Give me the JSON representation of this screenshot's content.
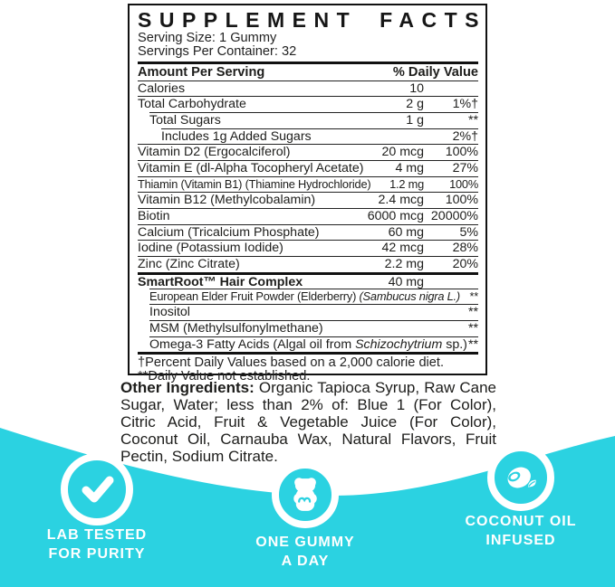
{
  "colors": {
    "teal": "#2BD2E1",
    "text": "#1D1D1B",
    "border": "#111111",
    "white": "#FFFFFF"
  },
  "label": {
    "title": "SUPPLEMENT FACTS",
    "serving_size": "Serving Size: 1 Gummy",
    "servings_per_container": "Servings Per Container: 32",
    "header": {
      "left": "Amount Per Serving",
      "right": "% Daily Value"
    },
    "rows": [
      {
        "name": "Calories",
        "amount": "10",
        "dv": "",
        "indent": 0,
        "sep": "thin"
      },
      {
        "name": "Total Carbohydrate",
        "amount": "2 g",
        "dv": "1%†",
        "indent": 0,
        "sep": "thin"
      },
      {
        "name": "Total Sugars",
        "amount": "1 g",
        "dv": "**",
        "indent": 1,
        "sep": "thin"
      },
      {
        "name": "Includes 1g Added Sugars",
        "amount": "",
        "dv": "2%†",
        "indent": 2,
        "sep": "thin"
      },
      {
        "name": "Vitamin D2 (Ergocalciferol)",
        "amount": "20 mcg",
        "dv": "100%",
        "indent": 0,
        "sep": "thin"
      },
      {
        "name": "Vitamin E (dl-Alpha Tocopheryl Acetate)",
        "amount": "4 mg",
        "dv": "27%",
        "indent": 0,
        "sep": "thin"
      },
      {
        "name": "Thiamin (Vitamin B1) (Thiamine Hydrochloride)",
        "amount": "1.2 mg",
        "dv": "100%",
        "indent": 0,
        "sep": "thin",
        "small": true
      },
      {
        "name": "Vitamin B12 (Methylcobalamin)",
        "amount": "2.4 mcg",
        "dv": "100%",
        "indent": 0,
        "sep": "thin"
      },
      {
        "name": "Biotin",
        "amount": "6000 mcg",
        "dv": "20000%",
        "indent": 0,
        "sep": "thin"
      },
      {
        "name": "Calcium (Tricalcium Phosphate)",
        "amount": "60 mg",
        "dv": "5%",
        "indent": 0,
        "sep": "thin"
      },
      {
        "name": "Iodine (Potassium Iodide)",
        "amount": "42 mcg",
        "dv": "28%",
        "indent": 0,
        "sep": "thin"
      },
      {
        "name": "Zinc (Zinc Citrate)",
        "amount": "2.2 mg",
        "dv": "20%",
        "indent": 0,
        "sep": "thin"
      },
      {
        "name": "SmartRoot™ Hair Complex",
        "amount": "40 mg",
        "dv": "",
        "indent": 0,
        "sep": "thick",
        "bold": true
      },
      {
        "parts": [
          {
            "t": "European Elder Fruit Powder (Elderberry) ",
            "i": false
          },
          {
            "t": "(Sambucus nigra L.)",
            "i": true
          }
        ],
        "amount": "",
        "dv": "**",
        "indent": 1,
        "sep": "thin",
        "small": true
      },
      {
        "name": "Inositol",
        "amount": "",
        "dv": "**",
        "indent": 1,
        "sep": "thin"
      },
      {
        "name": "MSM (Methylsulfonylmethane)",
        "amount": "",
        "dv": "**",
        "indent": 1,
        "sep": "thin"
      },
      {
        "parts": [
          {
            "t": "Omega-3 Fatty Acids (Algal oil from ",
            "i": false
          },
          {
            "t": "Schizochytrium",
            "i": true
          },
          {
            "t": " sp.)",
            "i": false
          }
        ],
        "amount": "",
        "dv": "**",
        "indent": 1,
        "sep": "thin"
      }
    ],
    "footnotes": [
      "†Percent Daily Values based on a 2,000 calorie diet.",
      "**Daily Value not established."
    ]
  },
  "other_ingredients": {
    "label": "Other Ingredients:",
    "text": " Organic Tapioca Syrup, Raw Cane Sugar, Water; less than 2% of: Blue 1 (For Color), Citric Acid, Fruit  & Vegetable Juice (For Color), Coconut Oil, Carnauba Wax, Natural Flavors, Fruit Pectin, Sodium Citrate."
  },
  "badges": [
    {
      "icon": "checkmark-icon",
      "line1": "LAB TESTED",
      "line2": "FOR PURITY"
    },
    {
      "icon": "gummy-bear-icon",
      "line1": "ONE GUMMY",
      "line2": "A DAY"
    },
    {
      "icon": "coconut-icon",
      "line1": "COCONUT OIL",
      "line2": "INFUSED"
    }
  ]
}
